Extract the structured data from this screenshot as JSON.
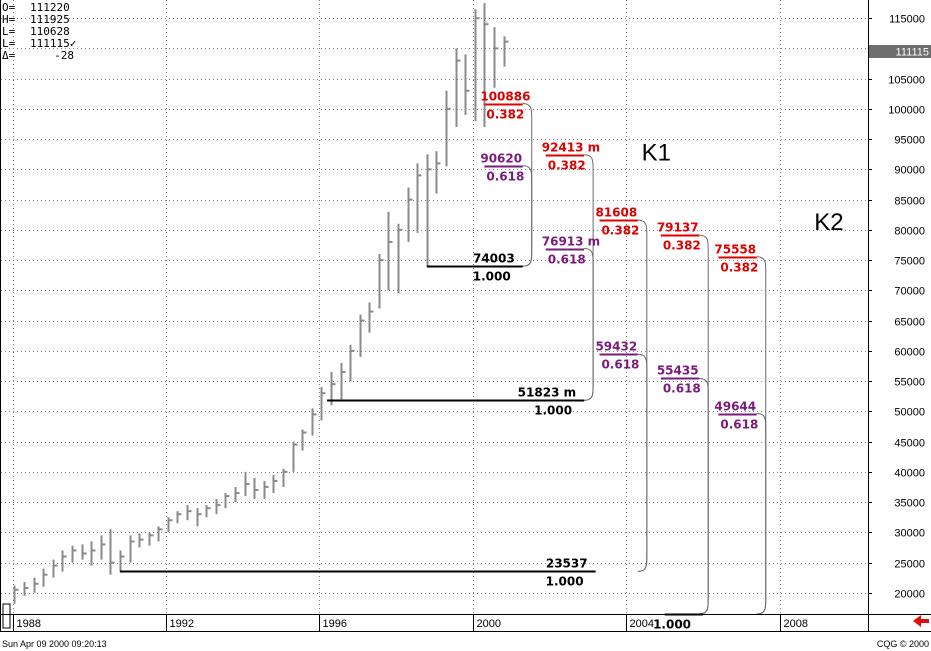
{
  "ohlc_readout": [
    {
      "label": "O=",
      "value": "111220"
    },
    {
      "label": "H=",
      "value": "111925"
    },
    {
      "label": "L=",
      "value": "110628"
    },
    {
      "label": "L=",
      "value": "111115✓"
    },
    {
      "label": "Δ=",
      "value": "-28"
    }
  ],
  "last_price_badge": "111115",
  "status_bar": {
    "timestamp": "Sun Apr 09 2000 09:20:13",
    "vendor": "CQG © 2000"
  },
  "scroll_icon": "red-left-arrow-icon",
  "colors": {
    "price_bars": "#8a8a8a",
    "ratio_0382": "#e00000",
    "ratio_0618": "#7a1a7a",
    "ratio_1000": "#000000",
    "grid": "#808080",
    "badge_bg": "#6e6e6e"
  },
  "chart_data": {
    "type": "bar",
    "subtype": "ohlc-price-bars",
    "xlim": [
      1987.7,
      2010.3
    ],
    "ylim": [
      16500,
      118000
    ],
    "x_ticks": [
      {
        "label": "1988",
        "x": 1988.0
      },
      {
        "label": "1992",
        "x": 1992.0
      },
      {
        "label": "1996",
        "x": 1996.0
      },
      {
        "label": "2000",
        "x": 2000.0
      },
      {
        "label": "2004",
        "x": 2004.0
      },
      {
        "label": "2008",
        "x": 2008.0
      }
    ],
    "y_ticks": [
      20000,
      25000,
      30000,
      35000,
      40000,
      45000,
      50000,
      55000,
      60000,
      65000,
      70000,
      75000,
      80000,
      85000,
      90000,
      95000,
      100000,
      105000,
      110000,
      115000
    ],
    "y_tick_labels": [
      "20000",
      "25000",
      "30000",
      "35000",
      "40000",
      "45000",
      "50000",
      "55000",
      "60000",
      "65000",
      "70000",
      "75000",
      "80000",
      "85000",
      "90000",
      "95000",
      "100000",
      "105000",
      "110000",
      "115000"
    ],
    "grid": true,
    "price_bars": [
      {
        "x": 1988.05,
        "h": 21200,
        "l": 18200,
        "c": 20500
      },
      {
        "x": 1988.3,
        "h": 21800,
        "l": 19500,
        "c": 20800
      },
      {
        "x": 1988.55,
        "h": 22500,
        "l": 20000,
        "c": 21500
      },
      {
        "x": 1988.8,
        "h": 24000,
        "l": 21000,
        "c": 23000
      },
      {
        "x": 1989.05,
        "h": 25500,
        "l": 22500,
        "c": 24500
      },
      {
        "x": 1989.3,
        "h": 27000,
        "l": 23500,
        "c": 26000
      },
      {
        "x": 1989.55,
        "h": 27800,
        "l": 25000,
        "c": 27000
      },
      {
        "x": 1989.8,
        "h": 28000,
        "l": 25500,
        "c": 26500
      },
      {
        "x": 1990.05,
        "h": 28500,
        "l": 24500,
        "c": 27000
      },
      {
        "x": 1990.3,
        "h": 29500,
        "l": 25500,
        "c": 28000
      },
      {
        "x": 1990.55,
        "h": 30500,
        "l": 23000,
        "c": 25000
      },
      {
        "x": 1990.8,
        "h": 27000,
        "l": 23500,
        "c": 26000
      },
      {
        "x": 1991.05,
        "h": 29500,
        "l": 25000,
        "c": 28500
      },
      {
        "x": 1991.3,
        "h": 29800,
        "l": 27500,
        "c": 28800
      },
      {
        "x": 1991.55,
        "h": 30000,
        "l": 27800,
        "c": 29500
      },
      {
        "x": 1991.8,
        "h": 31000,
        "l": 28500,
        "c": 30500
      },
      {
        "x": 1992.05,
        "h": 32500,
        "l": 30000,
        "c": 32000
      },
      {
        "x": 1992.3,
        "h": 33500,
        "l": 31500,
        "c": 33000
      },
      {
        "x": 1992.55,
        "h": 34500,
        "l": 32000,
        "c": 33500
      },
      {
        "x": 1992.8,
        "h": 34000,
        "l": 31000,
        "c": 33000
      },
      {
        "x": 1993.05,
        "h": 34500,
        "l": 32500,
        "c": 34000
      },
      {
        "x": 1993.3,
        "h": 35500,
        "l": 33000,
        "c": 34500
      },
      {
        "x": 1993.55,
        "h": 36500,
        "l": 34000,
        "c": 36000
      },
      {
        "x": 1993.8,
        "h": 37500,
        "l": 35000,
        "c": 36500
      },
      {
        "x": 1994.05,
        "h": 40000,
        "l": 36000,
        "c": 38000
      },
      {
        "x": 1994.3,
        "h": 39000,
        "l": 35500,
        "c": 37000
      },
      {
        "x": 1994.55,
        "h": 38500,
        "l": 35500,
        "c": 37500
      },
      {
        "x": 1994.8,
        "h": 39500,
        "l": 36500,
        "c": 38500
      },
      {
        "x": 1995.05,
        "h": 40500,
        "l": 37500,
        "c": 40000
      },
      {
        "x": 1995.3,
        "h": 45000,
        "l": 40000,
        "c": 44500
      },
      {
        "x": 1995.55,
        "h": 47000,
        "l": 43500,
        "c": 46500
      },
      {
        "x": 1995.8,
        "h": 50500,
        "l": 46000,
        "c": 49500
      },
      {
        "x": 1996.05,
        "h": 54000,
        "l": 48500,
        "c": 53000
      },
      {
        "x": 1996.3,
        "h": 56500,
        "l": 51000,
        "c": 54500
      },
      {
        "x": 1996.55,
        "h": 58000,
        "l": 52000,
        "c": 56500
      },
      {
        "x": 1996.8,
        "h": 61000,
        "l": 55000,
        "c": 60000
      },
      {
        "x": 1997.05,
        "h": 66000,
        "l": 59000,
        "c": 65000
      },
      {
        "x": 1997.3,
        "h": 68000,
        "l": 63000,
        "c": 66500
      },
      {
        "x": 1997.55,
        "h": 76000,
        "l": 67000,
        "c": 75000
      },
      {
        "x": 1997.8,
        "h": 83000,
        "l": 70000,
        "c": 78000
      },
      {
        "x": 1998.05,
        "h": 81000,
        "l": 69500,
        "c": 80000
      },
      {
        "x": 1998.3,
        "h": 87000,
        "l": 78000,
        "c": 85000
      },
      {
        "x": 1998.55,
        "h": 91000,
        "l": 79500,
        "c": 89000
      },
      {
        "x": 1998.8,
        "h": 92500,
        "l": 74003,
        "c": 90000
      },
      {
        "x": 1999.05,
        "h": 93000,
        "l": 86000,
        "c": 91000
      },
      {
        "x": 1999.3,
        "h": 103000,
        "l": 90500,
        "c": 100000
      },
      {
        "x": 1999.55,
        "h": 110000,
        "l": 97000,
        "c": 108000
      },
      {
        "x": 1999.8,
        "h": 109000,
        "l": 99000,
        "c": 103000
      },
      {
        "x": 2000.05,
        "h": 116500,
        "l": 98000,
        "c": 115000
      },
      {
        "x": 2000.3,
        "h": 117500,
        "l": 97000,
        "c": 114000
      },
      {
        "x": 2000.55,
        "h": 113500,
        "l": 103500,
        "c": 110000
      },
      {
        "x": 2000.8,
        "h": 112000,
        "l": 107000,
        "c": 111115
      }
    ],
    "base_lines": [
      {
        "value": 74003,
        "label": "74003",
        "ratio_label": "1.000",
        "x_from": 1998.8,
        "x_to": 2001.3
      },
      {
        "value": 51823,
        "label": "51823 m",
        "ratio_label": "1.000",
        "x_from": 1996.2,
        "x_to": 2002.9
      },
      {
        "value": 23537,
        "label": "23537",
        "ratio_label": "1.000",
        "x_from": 1990.8,
        "x_to": 2003.2
      },
      {
        "value": 16500,
        "label": "",
        "ratio_label": "1.000",
        "x_from": 2005.0,
        "x_to": 2006.0
      }
    ],
    "target_levels": [
      {
        "value": 100886,
        "label": "100886",
        "ratio": "0.382",
        "kind": "0.382",
        "x_from": 2000.3,
        "x_to": 2001.3
      },
      {
        "value": 92413,
        "label": "92413 m",
        "ratio": "0.382",
        "kind": "0.382",
        "x_from": 2001.9,
        "x_to": 2002.9
      },
      {
        "value": 90620,
        "label": "90620",
        "ratio": "0.618",
        "kind": "0.618",
        "x_from": 2000.3,
        "x_to": 2001.3
      },
      {
        "value": 81608,
        "label": "81608",
        "ratio": "0.382",
        "kind": "0.382",
        "x_from": 2003.3,
        "x_to": 2004.3
      },
      {
        "value": 79137,
        "label": "79137",
        "ratio": "0.382",
        "kind": "0.382",
        "x_from": 2004.9,
        "x_to": 2005.9
      },
      {
        "value": 76913,
        "label": "76913 m",
        "ratio": "0.618",
        "kind": "0.618",
        "x_from": 2001.9,
        "x_to": 2002.9
      },
      {
        "value": 75558,
        "label": "75558",
        "ratio": "0.382",
        "kind": "0.382",
        "x_from": 2006.4,
        "x_to": 2007.4
      },
      {
        "value": 59432,
        "label": "59432",
        "ratio": "0.618",
        "kind": "0.618",
        "x_from": 2003.3,
        "x_to": 2004.3
      },
      {
        "value": 55435,
        "label": "55435",
        "ratio": "0.618",
        "kind": "0.618",
        "x_from": 2004.9,
        "x_to": 2005.9
      },
      {
        "value": 49644,
        "label": "49644",
        "ratio": "0.618",
        "kind": "0.618",
        "x_from": 2006.4,
        "x_to": 2007.4
      }
    ],
    "connectors": [
      {
        "from": 100886,
        "to": 74003,
        "x": 2001.3
      },
      {
        "from": 90620,
        "to": 74003,
        "x": 2001.3
      },
      {
        "from": 92413,
        "to": 51823,
        "x": 2002.9
      },
      {
        "from": 76913,
        "to": 51823,
        "x": 2002.9
      },
      {
        "from": 81608,
        "to": 23537,
        "x": 2004.3
      },
      {
        "from": 59432,
        "to": 23537,
        "x": 2004.3
      },
      {
        "from": 79137,
        "to": 16500,
        "x": 2005.9
      },
      {
        "from": 55435,
        "to": 16500,
        "x": 2005.9
      },
      {
        "from": 75558,
        "to": 16500,
        "x": 2007.4
      },
      {
        "from": 49644,
        "to": 16500,
        "x": 2007.4
      }
    ],
    "annotations": [
      {
        "text": "K1",
        "x": 2004.4,
        "y": 91500
      },
      {
        "text": "K2",
        "x": 2008.9,
        "y": 80000
      }
    ]
  }
}
